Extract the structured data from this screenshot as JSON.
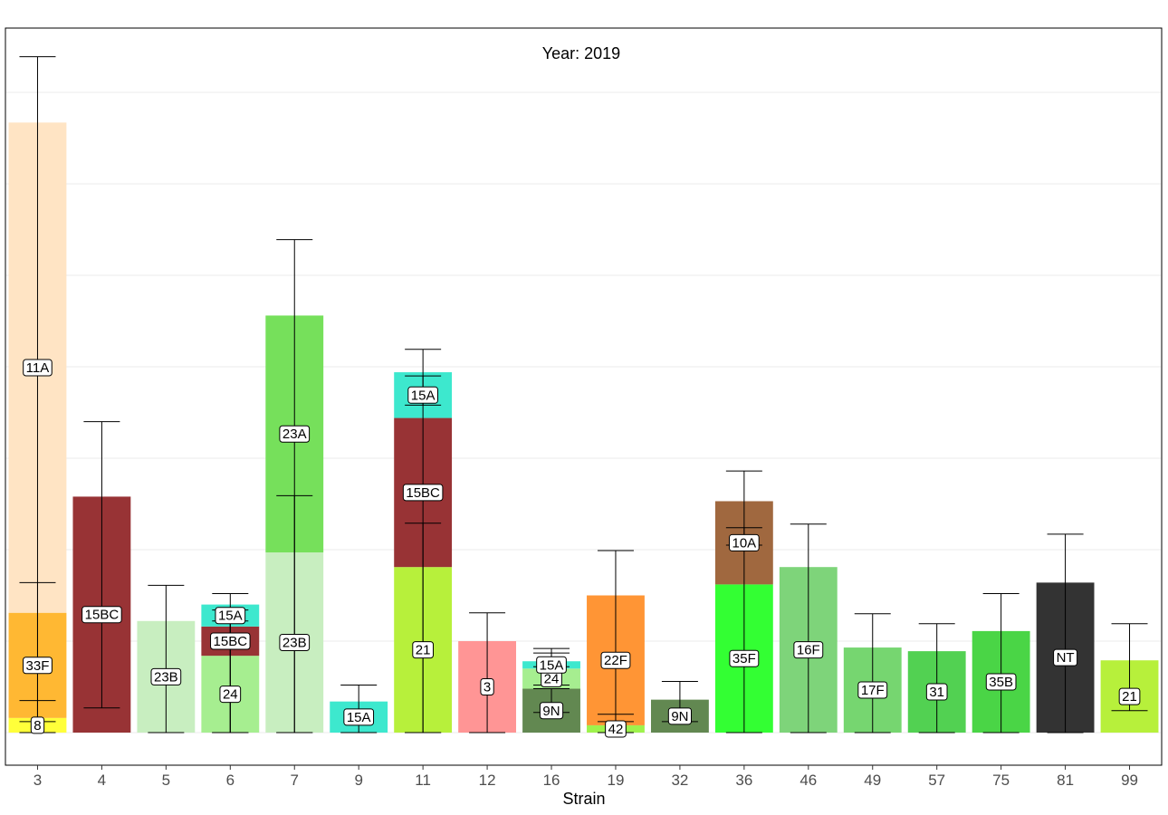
{
  "chart_data": {
    "type": "bar",
    "stacked": true,
    "title": "Year: 2019",
    "xlabel": "Strain",
    "ylabel": "",
    "ylim": [
      0,
      7.5
    ],
    "grid": true,
    "categories": [
      "3",
      "4",
      "5",
      "6",
      "7",
      "9",
      "11",
      "12",
      "16",
      "19",
      "32",
      "36",
      "46",
      "49",
      "57",
      "75",
      "81",
      "99"
    ],
    "colors": {
      "11A": "#FFE4C4",
      "33F": "#FFB833",
      "8": "#FFFF3A",
      "15BC": "#983335",
      "23B": "#C8EEC0",
      "24": "#A6EE90",
      "15A": "#3DE8CE",
      "23A": "#76E05B",
      "21": "#B7F03B",
      "3": "#FF9595",
      "9N": "#628851",
      "22F": "#FF9535",
      "42": "#9EF24D",
      "10A": "#A0683F",
      "35F": "#33FF33",
      "16F": "#7ED47A",
      "17F": "#76D670",
      "31": "#52D152",
      "35B": "#4AD546",
      "NT": "#333333"
    },
    "bars": [
      {
        "strain": "3",
        "segments": [
          {
            "serotype": "8",
            "value": 0.16,
            "err": [
              0.12,
              0.35
            ]
          },
          {
            "serotype": "33F",
            "value": 1.15,
            "err": [
              0.0,
              1.64
            ]
          },
          {
            "serotype": "11A",
            "value": 5.36,
            "err": [
              0.0,
              7.39
            ]
          }
        ]
      },
      {
        "strain": "4",
        "segments": [
          {
            "serotype": "15BC",
            "value": 2.58,
            "err": [
              0.27,
              3.4
            ]
          }
        ]
      },
      {
        "strain": "5",
        "segments": [
          {
            "serotype": "23B",
            "value": 1.22,
            "err": [
              0.0,
              1.61
            ]
          }
        ]
      },
      {
        "strain": "6",
        "segments": [
          {
            "serotype": "24",
            "value": 0.84,
            "err": [
              0.0,
              1.52
            ]
          },
          {
            "serotype": "15BC",
            "value": 0.32,
            "err": [
              0.0,
              1.22
            ]
          },
          {
            "serotype": "15A",
            "value": 0.24,
            "err": [
              0.0,
              1.34
            ]
          }
        ]
      },
      {
        "strain": "7",
        "segments": [
          {
            "serotype": "23B",
            "value": 1.97,
            "err": [
              0.0,
              2.59
            ]
          },
          {
            "serotype": "23A",
            "value": 2.59,
            "err": [
              0.0,
              5.39
            ]
          }
        ]
      },
      {
        "strain": "9",
        "segments": [
          {
            "serotype": "15A",
            "value": 0.34,
            "err": [
              0.0,
              0.52
            ]
          }
        ]
      },
      {
        "strain": "11",
        "segments": [
          {
            "serotype": "21",
            "value": 1.81,
            "err": [
              0.0,
              2.29
            ]
          },
          {
            "serotype": "15BC",
            "value": 1.63,
            "err": [
              0.0,
              3.9
            ]
          },
          {
            "serotype": "15A",
            "value": 0.5,
            "err": [
              3.58,
              4.19
            ]
          }
        ]
      },
      {
        "strain": "12",
        "segments": [
          {
            "serotype": "3",
            "value": 1.0,
            "err": [
              0.0,
              1.31
            ]
          }
        ]
      },
      {
        "strain": "16",
        "segments": [
          {
            "serotype": "9N",
            "value": 0.48,
            "err": [
              0.22,
              0.48
            ]
          },
          {
            "serotype": "24",
            "value": 0.22,
            "err": [
              0.52,
              0.87
            ]
          },
          {
            "serotype": "15A",
            "value": 0.08,
            "err": [
              0.72,
              0.92
            ]
          }
        ]
      },
      {
        "strain": "19",
        "segments": [
          {
            "serotype": "42",
            "value": 0.08,
            "err": [
              0.0,
              0.2
            ]
          },
          {
            "serotype": "22F",
            "value": 1.42,
            "err": [
              0.12,
              1.99
            ]
          }
        ]
      },
      {
        "strain": "32",
        "segments": [
          {
            "serotype": "9N",
            "value": 0.36,
            "err": [
              0.12,
              0.56
            ]
          }
        ]
      },
      {
        "strain": "36",
        "segments": [
          {
            "serotype": "35F",
            "value": 1.62,
            "err": [
              0.0,
              2.24
            ]
          },
          {
            "serotype": "10A",
            "value": 0.91,
            "err": [
              2.05,
              2.86
            ]
          }
        ]
      },
      {
        "strain": "46",
        "segments": [
          {
            "serotype": "16F",
            "value": 1.81,
            "err": [
              0.0,
              2.28
            ]
          }
        ]
      },
      {
        "strain": "49",
        "segments": [
          {
            "serotype": "17F",
            "value": 0.93,
            "err": [
              0.0,
              1.3
            ]
          }
        ]
      },
      {
        "strain": "57",
        "segments": [
          {
            "serotype": "31",
            "value": 0.89,
            "err": [
              0.0,
              1.19
            ]
          }
        ]
      },
      {
        "strain": "75",
        "segments": [
          {
            "serotype": "35B",
            "value": 1.11,
            "err": [
              0.0,
              1.52
            ]
          }
        ]
      },
      {
        "strain": "81",
        "segments": [
          {
            "serotype": "NT",
            "value": 1.64,
            "err": [
              0.0,
              2.17
            ]
          }
        ]
      },
      {
        "strain": "99",
        "segments": [
          {
            "serotype": "21",
            "value": 0.79,
            "err": [
              0.24,
              1.19
            ]
          }
        ]
      }
    ]
  }
}
